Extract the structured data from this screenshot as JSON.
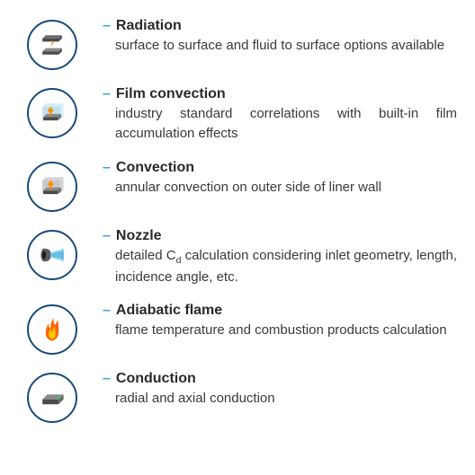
{
  "items": [
    {
      "icon": "radiation",
      "title": "Radiation",
      "desc": "surface to surface and fluid to surface options available"
    },
    {
      "icon": "film-convection",
      "title": "Film convection",
      "desc": "industry standard correlations with built-in film accumulation effects"
    },
    {
      "icon": "convection",
      "title": "Convection",
      "desc": "annular convection on outer side of liner wall"
    },
    {
      "icon": "nozzle",
      "title": "Nozzle",
      "desc_html": "detailed C<sub>d</sub> calculation considering inlet geometry, length, incidence angle, etc."
    },
    {
      "icon": "adiabatic-flame",
      "title": "Adiabatic flame",
      "desc": "flame temperature and combustion products calculation"
    },
    {
      "icon": "conduction",
      "title": "Conduction",
      "desc": "radial and axial conduction"
    }
  ],
  "colors": {
    "circle_border": "#1a4a7a",
    "dash": "#3aa6d8",
    "title": "#2a2a2a",
    "desc": "#3a3a3a",
    "slab": "#4a4a4a",
    "slab_light": "#6a6a6a",
    "slab_top": "#888888",
    "arrow_orange": "#ff8c00",
    "glass_blue": "#a8d8e8",
    "glass_blue_light": "#c8e8f4",
    "flame_orange": "#ff6500",
    "flame_yellow": "#ffd000",
    "nozzle_body": "#5a5a5a",
    "nozzle_hole": "#1a1a1a",
    "spray_blue": "#3aa6d8",
    "spray_cyan": "#8ad0e8",
    "green": "#4ac06a"
  }
}
